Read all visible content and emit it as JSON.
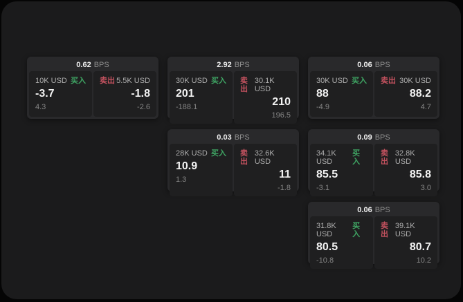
{
  "labels": {
    "bps_unit": "BPS",
    "buy": "买入",
    "sell": "卖出"
  },
  "colors": {
    "page_bg": "#050505",
    "panel_bg": "#1b1b1c",
    "card_bg": "#29292b",
    "pane_bg": "#1f1f20",
    "buy_green": "#3fa463",
    "sell_red": "#c4525f",
    "value_white": "#f2f2f2",
    "muted_gray": "#858585"
  },
  "cards": [
    {
      "row": 1,
      "col": 1,
      "bps": "0.62",
      "buy": {
        "size": "10K USD",
        "value": "-3.7",
        "sub": "4.3"
      },
      "sell": {
        "size": "5.5K USD",
        "value": "-1.8",
        "sub": "-2.6"
      }
    },
    {
      "row": 1,
      "col": 2,
      "bps": "2.92",
      "buy": {
        "size": "30K USD",
        "value": "201",
        "sub": "-188.1"
      },
      "sell": {
        "size": "30.1K USD",
        "value": "210",
        "sub": "196.5"
      }
    },
    {
      "row": 1,
      "col": 3,
      "bps": "0.06",
      "buy": {
        "size": "30K USD",
        "value": "88",
        "sub": "-4.9"
      },
      "sell": {
        "size": "30K USD",
        "value": "88.2",
        "sub": "4.7"
      }
    },
    {
      "row": 2,
      "col": 2,
      "bps": "0.03",
      "buy": {
        "size": "28K USD",
        "value": "10.9",
        "sub": "1.3"
      },
      "sell": {
        "size": "32.6K USD",
        "value": "11",
        "sub": "-1.8"
      }
    },
    {
      "row": 2,
      "col": 3,
      "bps": "0.09",
      "buy": {
        "size": "34.1K USD",
        "value": "85.5",
        "sub": "-3.1"
      },
      "sell": {
        "size": "32.8K USD",
        "value": "85.8",
        "sub": "3.0"
      }
    },
    {
      "row": 3,
      "col": 3,
      "bps": "0.06",
      "buy": {
        "size": "31.8K USD",
        "value": "80.5",
        "sub": "-10.8"
      },
      "sell": {
        "size": "39.1K USD",
        "value": "80.7",
        "sub": "10.2"
      }
    }
  ]
}
